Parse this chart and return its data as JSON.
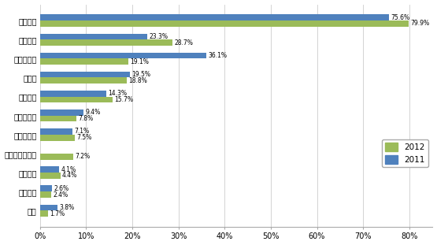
{
  "categories": [
    "产品质量",
    "供货能力",
    "产品性价比",
    "交货期",
    "技术支持",
    "技术领先性",
    "品牌知名度",
    "小批量供应服务",
    "产品组合",
    "付款条件",
    "信誉"
  ],
  "values_2012": [
    79.9,
    28.7,
    19.1,
    18.8,
    15.7,
    7.8,
    7.5,
    7.2,
    4.4,
    2.4,
    1.7
  ],
  "values_2011": [
    75.6,
    23.3,
    36.1,
    19.5,
    14.3,
    9.4,
    7.1,
    0,
    4.1,
    2.6,
    3.8
  ],
  "labels_2012": [
    "79.9%",
    "28.7%",
    "19.1%",
    "18.8%",
    "15.7%",
    "7.8%",
    "7.5%",
    "7.2%",
    "4.4%",
    "2.4%",
    "1.7%"
  ],
  "labels_2011": [
    "75.6%",
    "23.3%",
    "36.1%",
    "19.5%",
    "14.3%",
    "9.4%",
    "7.1%",
    "",
    "4.1%",
    "2.6%",
    "3.8%"
  ],
  "color_2012": "#9BBB59",
  "color_2011": "#4F81BD",
  "bar_height": 0.32,
  "xlim": [
    0,
    85
  ],
  "xticks": [
    0,
    10,
    20,
    30,
    40,
    50,
    60,
    70,
    80
  ],
  "xtick_labels": [
    "0%",
    "10%",
    "20%",
    "30%",
    "40%",
    "50%",
    "60%",
    "70%",
    "80%"
  ],
  "legend_labels": [
    "2012",
    "2011"
  ],
  "figsize": [
    5.55,
    3.11
  ],
  "dpi": 100,
  "bg_color": "#FFFFFF",
  "grid_color": "#CCCCCC"
}
